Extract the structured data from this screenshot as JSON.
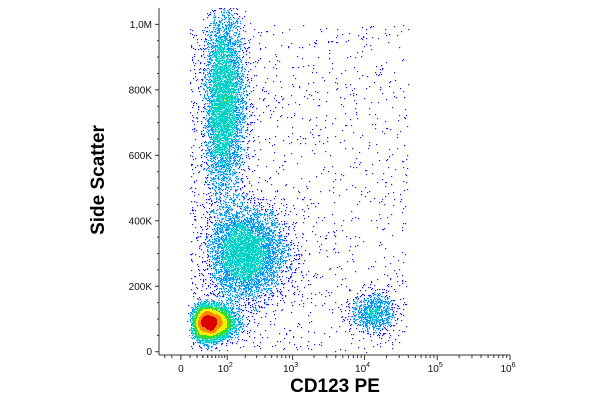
{
  "chart_data": {
    "type": "scatter",
    "subtype": "flow-cytometry-density-dot-plot",
    "title": "",
    "xlabel": "CD123 PE",
    "ylabel": "Side Scatter",
    "x_scale": "biexponential",
    "y_scale": "linear",
    "xlim": [
      -30,
      1000000
    ],
    "ylim": [
      -10000,
      1050000
    ],
    "x_ticks": [
      {
        "value": 0,
        "base": "0",
        "exp": ""
      },
      {
        "value": 100,
        "base": "10",
        "exp": "2"
      },
      {
        "value": 1000,
        "base": "10",
        "exp": "3"
      },
      {
        "value": 10000,
        "base": "10",
        "exp": "4"
      },
      {
        "value": 100000,
        "base": "10",
        "exp": "5"
      },
      {
        "value": 1000000,
        "base": "10",
        "exp": "6"
      }
    ],
    "y_ticks": [
      {
        "value": 0,
        "label": "0"
      },
      {
        "value": 200000,
        "label": "200K"
      },
      {
        "value": 400000,
        "label": "400K"
      },
      {
        "value": 600000,
        "label": "600K"
      },
      {
        "value": 800000,
        "label": "800K"
      },
      {
        "value": 1000000,
        "label": "1,0M"
      }
    ],
    "grid": false,
    "legend": "none",
    "color_scale": [
      "#1a1aff",
      "#0096ff",
      "#00d2c8",
      "#32dc32",
      "#f0f000",
      "#ff8c00",
      "#dc0000"
    ],
    "populations": [
      {
        "x_center": 45,
        "y_center": 90000,
        "x_spread_decades": 0.22,
        "y_spread": 25000,
        "count": 9000
      },
      {
        "x_center": 85,
        "y_center": 760000,
        "x_spread_decades": 0.18,
        "y_spread": 140000,
        "count": 7000
      },
      {
        "x_center": 200,
        "y_center": 300000,
        "x_spread_decades": 0.3,
        "y_spread": 70000,
        "count": 5500
      },
      {
        "x_center": 13000,
        "y_center": 120000,
        "x_spread_decades": 0.15,
        "y_spread": 30000,
        "count": 900
      }
    ]
  }
}
